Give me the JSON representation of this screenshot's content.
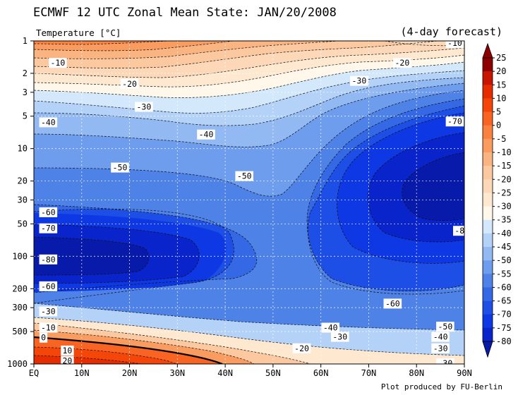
{
  "header": {
    "title": "ECMWF 12 UTC Zonal Mean State: JAN/20/2008",
    "quantity": "Temperature [°C]",
    "forecast": "(4-day forecast)",
    "credit": "Plot produced by FU-Berlin"
  },
  "chart_data": {
    "type": "heatmap",
    "subtype": "filled-contour",
    "x_ticks": [
      "EQ",
      "10N",
      "20N",
      "30N",
      "40N",
      "50N",
      "60N",
      "70N",
      "80N",
      "90N"
    ],
    "x_values": [
      0,
      10,
      20,
      30,
      40,
      50,
      60,
      70,
      80,
      90
    ],
    "y_ticks": [
      "1",
      "2",
      "3",
      "5",
      "10",
      "20",
      "30",
      "50",
      "100",
      "200",
      "300",
      "500",
      "1000"
    ],
    "y_values": [
      1,
      2,
      3,
      5,
      10,
      20,
      30,
      50,
      100,
      200,
      300,
      500,
      1000
    ],
    "y_scale": "log",
    "grid": true,
    "colorbar_labels": [
      "25",
      "20",
      "15",
      "10",
      "5",
      "0",
      "-5",
      "-10",
      "-15",
      "-20",
      "-25",
      "-30",
      "-35",
      "-40",
      "-45",
      "-50",
      "-55",
      "-60",
      "-65",
      "-70",
      "-75",
      "-80"
    ],
    "colorbar_colors": [
      "#8e0000",
      "#c81400",
      "#e62d00",
      "#f5460a",
      "#fa6423",
      "#fa8241",
      "#fa9b5f",
      "#fab482",
      "#fcc8a0",
      "#fdd8b8",
      "#fee8d0",
      "#fff8ea",
      "#d4e8fb",
      "#b4d2f8",
      "#93b9f2",
      "#6f9ded",
      "#4f82e6",
      "#3468e4",
      "#1d4fe6",
      "#0d38e4",
      "#0a24cc",
      "#081aaa"
    ],
    "contour_labels": [
      {
        "text": "-10",
        "lat": 88,
        "p": 1.05
      },
      {
        "text": "-10",
        "lat": 5,
        "p": 1.6
      },
      {
        "text": "-20",
        "lat": 77,
        "p": 1.6
      },
      {
        "text": "-20",
        "lat": 20,
        "p": 2.5
      },
      {
        "text": "-30",
        "lat": 68,
        "p": 2.35
      },
      {
        "text": "-30",
        "lat": 23,
        "p": 4.1
      },
      {
        "text": "-40",
        "lat": 3,
        "p": 5.7
      },
      {
        "text": "-40",
        "lat": 36,
        "p": 7.4
      },
      {
        "text": "-70",
        "lat": 88,
        "p": 5.6
      },
      {
        "text": "-50",
        "lat": 18,
        "p": 15
      },
      {
        "text": "-50",
        "lat": 44,
        "p": 18
      },
      {
        "text": "-60",
        "lat": 3,
        "p": 39
      },
      {
        "text": "-70",
        "lat": 3,
        "p": 55
      },
      {
        "text": "-8",
        "lat": 89,
        "p": 58
      },
      {
        "text": "-80",
        "lat": 3,
        "p": 107
      },
      {
        "text": "-60",
        "lat": 3,
        "p": 190
      },
      {
        "text": "-60",
        "lat": 75,
        "p": 275
      },
      {
        "text": "-30",
        "lat": 3,
        "p": 325
      },
      {
        "text": "-10",
        "lat": 3,
        "p": 460
      },
      {
        "text": "-40",
        "lat": 62,
        "p": 460
      },
      {
        "text": "-50",
        "lat": 86,
        "p": 450
      },
      {
        "text": "0",
        "lat": 2,
        "p": 570
      },
      {
        "text": "-30",
        "lat": 64,
        "p": 560
      },
      {
        "text": "-40",
        "lat": 85,
        "p": 560
      },
      {
        "text": "10",
        "lat": 7,
        "p": 750
      },
      {
        "text": "-20",
        "lat": 56,
        "p": 715
      },
      {
        "text": "-30",
        "lat": 85,
        "p": 715
      },
      {
        "text": "20",
        "lat": 7,
        "p": 935
      },
      {
        "text": "-30",
        "lat": 86,
        "p": 985
      }
    ]
  }
}
